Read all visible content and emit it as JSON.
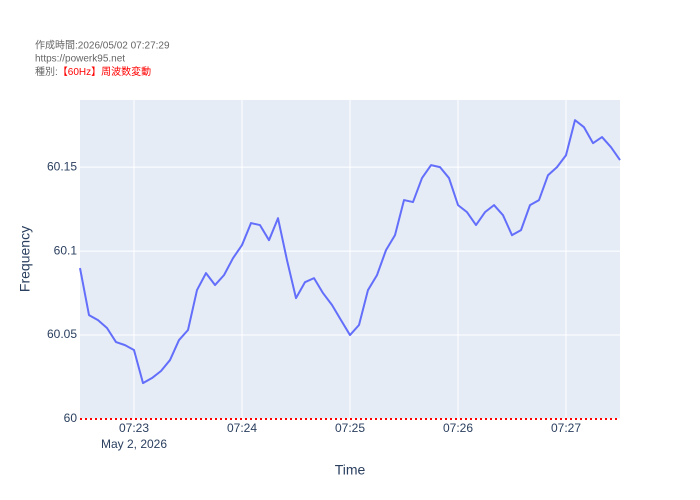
{
  "chart_data": {
    "type": "line",
    "annotations": [
      "作成時間:2026/05/02 07:27:29",
      "https://powerk95.net",
      "種別:"
    ],
    "annotation_highlight": "【60Hz】周波数変動",
    "highlight_color": "#ff0000",
    "x_label": "Time",
    "y_label": "Frequency",
    "x_date_label": "May 2, 2026",
    "background": "#e5ecf6",
    "grid": true,
    "x": [
      "07:22:30",
      "07:22:35",
      "07:22:40",
      "07:22:45",
      "07:22:50",
      "07:22:55",
      "07:23:00",
      "07:23:05",
      "07:23:10",
      "07:23:15",
      "07:23:20",
      "07:23:25",
      "07:23:30",
      "07:23:35",
      "07:23:40",
      "07:23:45",
      "07:23:50",
      "07:23:55",
      "07:24:00",
      "07:24:05",
      "07:24:10",
      "07:24:15",
      "07:24:20",
      "07:24:25",
      "07:24:30",
      "07:24:35",
      "07:24:40",
      "07:24:45",
      "07:24:50",
      "07:24:55",
      "07:25:00",
      "07:25:05",
      "07:25:10",
      "07:25:15",
      "07:25:20",
      "07:25:25",
      "07:25:30",
      "07:25:35",
      "07:25:40",
      "07:25:45",
      "07:25:50",
      "07:25:55",
      "07:26:00",
      "07:26:05",
      "07:26:10",
      "07:26:15",
      "07:26:20",
      "07:26:25",
      "07:26:30",
      "07:26:35",
      "07:26:40",
      "07:26:45",
      "07:26:50",
      "07:26:55",
      "07:27:00",
      "07:27:05",
      "07:27:10",
      "07:27:15",
      "07:27:20",
      "07:27:25",
      "07:27:30"
    ],
    "series": [
      {
        "color": "#636efa",
        "values": [
          60.0899,
          60.0619,
          60.0589,
          60.0542,
          60.0458,
          60.044,
          60.0411,
          60.0214,
          60.0244,
          60.0286,
          60.0351,
          60.047,
          60.053,
          60.0768,
          60.0869,
          60.0798,
          60.0857,
          60.0958,
          60.1036,
          60.1167,
          60.1155,
          60.1065,
          60.1196,
          60.0946,
          60.072,
          60.0815,
          60.0839,
          60.075,
          60.0679,
          60.0589,
          60.05,
          60.056,
          60.0768,
          60.0857,
          60.1006,
          60.1095,
          60.1304,
          60.1292,
          60.1435,
          60.1512,
          60.15,
          60.1435,
          60.1274,
          60.1232,
          60.1155,
          60.1232,
          60.1274,
          60.1214,
          60.1095,
          60.1125,
          60.1274,
          60.1304,
          60.1452,
          60.15,
          60.1571,
          60.178,
          60.1738,
          60.1643,
          60.1679,
          60.1619,
          60.1542
        ]
      }
    ],
    "xlim": [
      "07:22:30",
      "07:27:30"
    ],
    "xticks": [
      {
        "value": "07:23:00",
        "label": "07:23"
      },
      {
        "value": "07:24:00",
        "label": "07:24"
      },
      {
        "value": "07:25:00",
        "label": "07:25"
      },
      {
        "value": "07:26:00",
        "label": "07:26"
      },
      {
        "value": "07:27:00",
        "label": "07:27"
      }
    ],
    "ylim": [
      60,
      60.19
    ],
    "yticks": [
      60,
      60.05,
      60.1,
      60.15
    ],
    "reference_line": {
      "value": 60,
      "color": "#ff0000"
    }
  }
}
